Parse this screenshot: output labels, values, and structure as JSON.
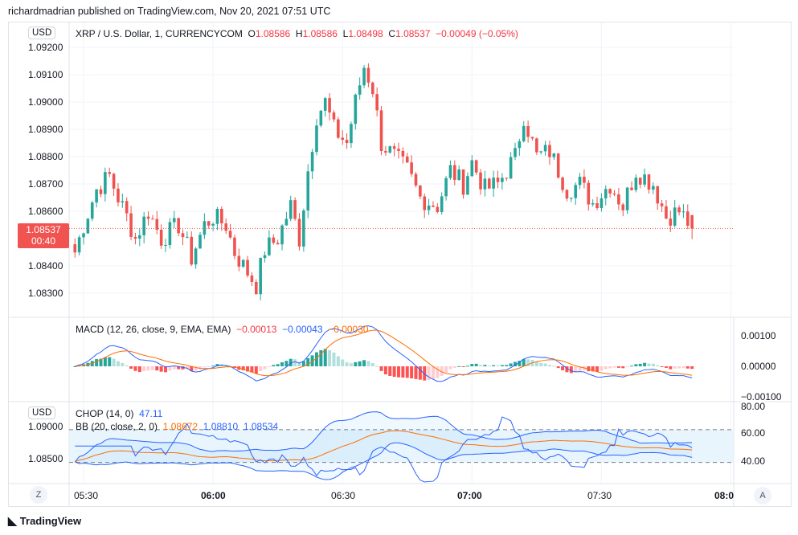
{
  "publisher_line": "richardmadrian published on TradingView.com, Nov 20, 2021 07:51 UTC",
  "legend": {
    "symbol": "XRP / U.S. Dollar, 1, CURRENCYCOM",
    "o_label": "O",
    "o": "1.08586",
    "h_label": "H",
    "h": "1.08586",
    "l_label": "L",
    "l": "1.08498",
    "c_label": "C",
    "c": "1.08537",
    "change": "−0.00049 (−0.05%)"
  },
  "currency_button": "USD",
  "last_price": {
    "value": "1.08537",
    "countdown": "00:40"
  },
  "price_axis": [
    "1.09200",
    "1.09100",
    "1.09000",
    "1.08900",
    "1.08800",
    "1.08700",
    "1.08600",
    "1.08400",
    "1.08300"
  ],
  "macd": {
    "label": "MACD (12, 26, close, 9, EMA, EMA)",
    "hist": "−0.00013",
    "macd": "−0.00043",
    "signal": "−0.00030",
    "axis": [
      "0.00100",
      "0.00000",
      "−0.00100"
    ]
  },
  "chop": {
    "label": "CHOP (14, 0)",
    "value": "47.11",
    "axis": [
      "80.00",
      "60.00",
      "40.00"
    ]
  },
  "bb": {
    "label": "BB (20, close, 2, 0)",
    "basis": "1.08672",
    "upper": "1.08810",
    "lower": "1.08534",
    "axis": [
      "1.09000",
      "1.08500"
    ]
  },
  "time_axis": [
    "05:30",
    "06:00",
    "06:30",
    "07:00",
    "07:30",
    "08:0"
  ],
  "buttons": {
    "z": "Z",
    "a": "A"
  },
  "brand": "TradingView",
  "colors": {
    "up": "#26a69a",
    "down": "#ef5350",
    "macd": "#2962ff",
    "signal": "#ff6d00"
  },
  "chart_data": {
    "type": "candlestick",
    "interval": "1m",
    "approx_close_path": [
      [
        "05:28",
        1.0845
      ],
      [
        "05:30",
        1.0855
      ],
      [
        "05:33",
        1.0868
      ],
      [
        "05:36",
        1.0873
      ],
      [
        "05:38",
        1.0865
      ],
      [
        "05:40",
        1.0858
      ],
      [
        "05:42",
        1.085
      ],
      [
        "05:45",
        1.086
      ],
      [
        "05:48",
        1.085
      ],
      [
        "05:52",
        1.0855
      ],
      [
        "05:55",
        1.0843
      ],
      [
        "05:58",
        1.0855
      ],
      [
        "06:00",
        1.0858
      ],
      [
        "06:03",
        1.0855
      ],
      [
        "06:05",
        1.0845
      ],
      [
        "06:07",
        1.084
      ],
      [
        "06:10",
        1.0833
      ],
      [
        "06:12",
        1.0846
      ],
      [
        "06:15",
        1.085
      ],
      [
        "06:18",
        1.0862
      ],
      [
        "06:20",
        1.085
      ],
      [
        "06:22",
        1.0875
      ],
      [
        "06:24",
        1.0895
      ],
      [
        "06:26",
        1.09
      ],
      [
        "06:28",
        1.089
      ],
      [
        "06:31",
        1.0885
      ],
      [
        "06:33",
        1.09
      ],
      [
        "06:35",
        1.0913
      ],
      [
        "06:37",
        1.0905
      ],
      [
        "06:39",
        1.0885
      ],
      [
        "06:42",
        1.088
      ],
      [
        "06:45",
        1.0875
      ],
      [
        "06:48",
        1.0865
      ],
      [
        "06:52",
        1.0862
      ],
      [
        "06:55",
        1.0875
      ],
      [
        "06:58",
        1.087
      ],
      [
        "07:00",
        1.0878
      ],
      [
        "07:03",
        1.0868
      ],
      [
        "07:06",
        1.087
      ],
      [
        "07:10",
        1.088
      ],
      [
        "07:12",
        1.0895
      ],
      [
        "07:15",
        1.088
      ],
      [
        "07:18",
        1.0882
      ],
      [
        "07:22",
        1.0868
      ],
      [
        "07:25",
        1.087
      ],
      [
        "07:28",
        1.0863
      ],
      [
        "07:32",
        1.087
      ],
      [
        "07:35",
        1.0862
      ],
      [
        "07:38",
        1.0875
      ],
      [
        "07:42",
        1.087
      ],
      [
        "07:45",
        1.0858
      ],
      [
        "07:48",
        1.086
      ],
      [
        "07:51",
        1.0854
      ]
    ],
    "ylim": [
      1.0825,
      1.0929
    ]
  }
}
